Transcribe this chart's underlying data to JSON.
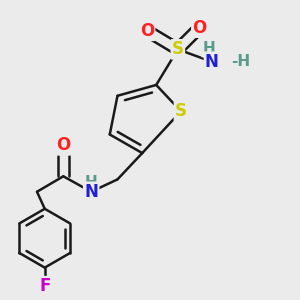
{
  "bg_color": "#ebebeb",
  "atom_colors": {
    "C": "#000000",
    "H": "#5a9a8a",
    "N": "#2020d0",
    "O": "#ff2020",
    "S": "#cccc00",
    "F": "#cc00cc",
    "S_ring": "#cccc00"
  },
  "bond_color": "#1a1a1a",
  "bond_width": 1.8,
  "font_size_atom": 11
}
